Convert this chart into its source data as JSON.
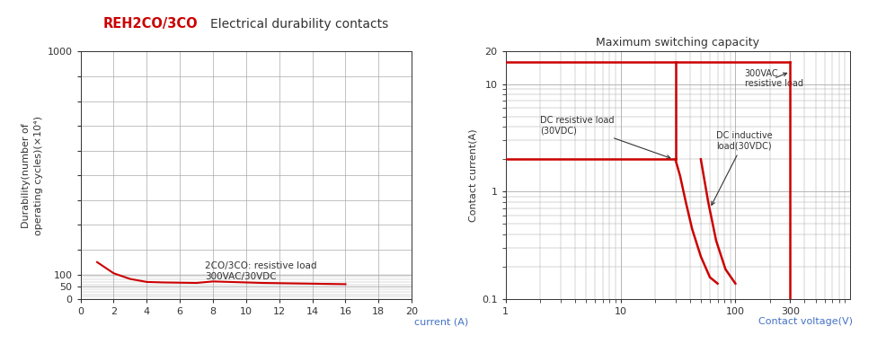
{
  "left_title_red": "REH2CO/3CO",
  "left_title_black": "Electrical durability contacts",
  "left_ylabel": "Durability(number of\noperating cycles)(×10⁴)",
  "left_xlabel": "current (A)",
  "left_annotation": "2CO/3CO: resistive load\n300VAC/30VDC",
  "left_curve_x": [
    1,
    2,
    3,
    4,
    5,
    6,
    7,
    8,
    9,
    10,
    11,
    12,
    13,
    14,
    15,
    16
  ],
  "left_curve_y": [
    150,
    105,
    82,
    70,
    68,
    67,
    66,
    72,
    70,
    68,
    66,
    65,
    64,
    63,
    62,
    61
  ],
  "right_title": "Maximum switching capacity",
  "right_ylabel": "Contact current(A)",
  "right_xlabel": "Contact voltage(V)",
  "color_red": "#cc0000",
  "color_dark": "#333333",
  "color_blue": "#4472c4",
  "color_grid": "#aaaaaa",
  "color_bg": "#ffffff"
}
